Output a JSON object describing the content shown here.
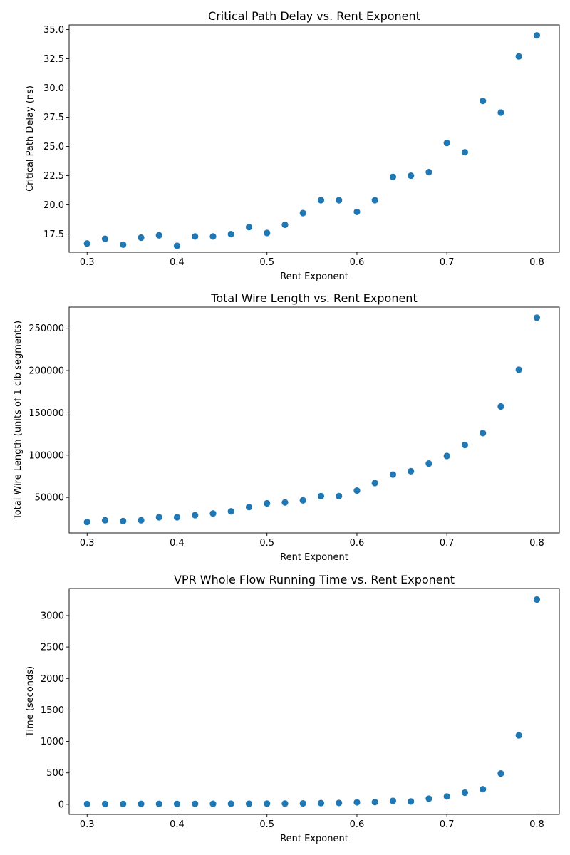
{
  "chart_data": [
    {
      "type": "scatter",
      "title": "Critical Path Delay vs. Rent Exponent",
      "xlabel": "Rent Exponent",
      "ylabel": "Critical Path Delay (ns)",
      "xlim": [
        0.28,
        0.825
      ],
      "ylim": [
        15.95,
        35.4
      ],
      "xticks": [
        0.3,
        0.4,
        0.5,
        0.6,
        0.7,
        0.8
      ],
      "xtick_labels": [
        "0.3",
        "0.4",
        "0.5",
        "0.6",
        "0.7",
        "0.8"
      ],
      "yticks": [
        17.5,
        20.0,
        22.5,
        25.0,
        27.5,
        30.0,
        32.5,
        35.0
      ],
      "ytick_labels": [
        "17.5",
        "20.0",
        "22.5",
        "25.0",
        "27.5",
        "30.0",
        "32.5",
        "35.0"
      ],
      "color": "#1f77b4",
      "x": [
        0.3,
        0.32,
        0.34,
        0.36,
        0.38,
        0.4,
        0.42,
        0.44,
        0.46,
        0.48,
        0.5,
        0.52,
        0.54,
        0.56,
        0.58,
        0.6,
        0.62,
        0.64,
        0.66,
        0.68,
        0.7,
        0.72,
        0.74,
        0.76,
        0.78,
        0.8
      ],
      "y": [
        16.7,
        17.1,
        16.6,
        17.2,
        17.4,
        16.5,
        17.3,
        17.3,
        17.5,
        18.1,
        17.6,
        18.3,
        19.3,
        20.4,
        20.4,
        19.4,
        20.4,
        22.4,
        22.5,
        22.8,
        25.3,
        24.5,
        28.9,
        27.9,
        32.7,
        34.5
      ]
    },
    {
      "type": "scatter",
      "title": "Total Wire Length vs. Rent Exponent",
      "xlabel": "Rent Exponent",
      "ylabel": "Total Wire Length (units of 1 clb segments)",
      "xlim": [
        0.28,
        0.825
      ],
      "ylim": [
        8000,
        275000
      ],
      "xticks": [
        0.3,
        0.4,
        0.5,
        0.6,
        0.7,
        0.8
      ],
      "xtick_labels": [
        "0.3",
        "0.4",
        "0.5",
        "0.6",
        "0.7",
        "0.8"
      ],
      "yticks": [
        50000,
        100000,
        150000,
        200000,
        250000
      ],
      "ytick_labels": [
        "50000",
        "100000",
        "150000",
        "200000",
        "250000"
      ],
      "color": "#1f77b4",
      "x": [
        0.3,
        0.32,
        0.34,
        0.36,
        0.38,
        0.4,
        0.42,
        0.44,
        0.46,
        0.48,
        0.5,
        0.52,
        0.54,
        0.56,
        0.58,
        0.6,
        0.62,
        0.64,
        0.66,
        0.68,
        0.7,
        0.72,
        0.74,
        0.76,
        0.78,
        0.8
      ],
      "y": [
        21000,
        23000,
        22000,
        23000,
        26500,
        26500,
        29000,
        31000,
        33500,
        38500,
        43000,
        44000,
        46500,
        51500,
        51500,
        58000,
        67000,
        77000,
        81000,
        90000,
        99000,
        112000,
        126000,
        157500,
        201000,
        262500
      ]
    },
    {
      "type": "scatter",
      "title": "VPR Whole Flow Running Time vs. Rent Exponent",
      "xlabel": "Rent Exponent",
      "ylabel": "Time (seconds)",
      "xlim": [
        0.28,
        0.825
      ],
      "ylim": [
        -160,
        3430
      ],
      "xticks": [
        0.3,
        0.4,
        0.5,
        0.6,
        0.7,
        0.8
      ],
      "xtick_labels": [
        "0.3",
        "0.4",
        "0.5",
        "0.6",
        "0.7",
        "0.8"
      ],
      "yticks": [
        0,
        500,
        1000,
        1500,
        2000,
        2500,
        3000
      ],
      "ytick_labels": [
        "0",
        "500",
        "1000",
        "1500",
        "2000",
        "2500",
        "3000"
      ],
      "color": "#1f77b4",
      "x": [
        0.3,
        0.32,
        0.34,
        0.36,
        0.38,
        0.4,
        0.42,
        0.44,
        0.46,
        0.48,
        0.5,
        0.52,
        0.54,
        0.56,
        0.58,
        0.6,
        0.62,
        0.64,
        0.66,
        0.68,
        0.7,
        0.72,
        0.74,
        0.76,
        0.78,
        0.8
      ],
      "y": [
        5,
        6,
        6,
        7,
        7,
        7,
        8,
        9,
        10,
        10,
        12,
        12,
        15,
        20,
        22,
        32,
        35,
        55,
        45,
        90,
        125,
        185,
        240,
        490,
        1095,
        3255
      ]
    }
  ]
}
